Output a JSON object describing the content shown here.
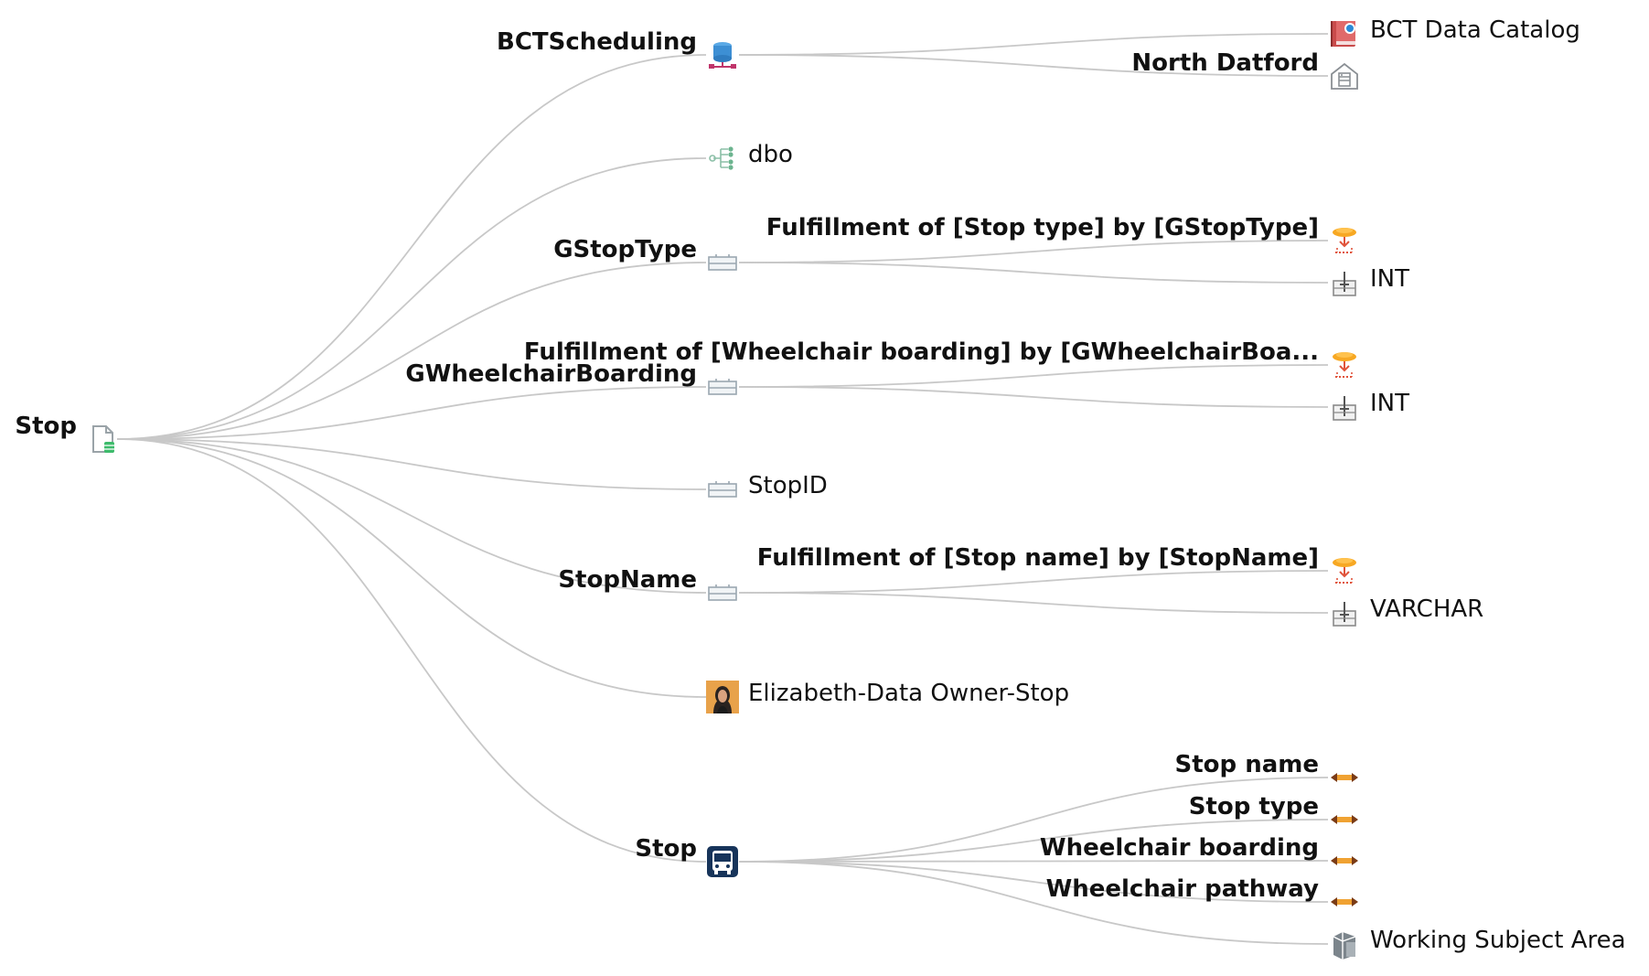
{
  "root": {
    "label": "Stop",
    "icon": "table-file-icon"
  },
  "nodes": [
    {
      "id": "bctscheduling",
      "label": "BCTScheduling",
      "icon": "database-icon",
      "side": "left",
      "children": [
        {
          "id": "bct-data-catalog",
          "label": "BCT Data Catalog",
          "icon": "catalog-book-icon",
          "side": "right"
        },
        {
          "id": "north-datford",
          "label": "North Datford",
          "icon": "server-house-icon",
          "side": "left"
        }
      ]
    },
    {
      "id": "dbo",
      "label": "dbo",
      "icon": "schema-hierarchy-icon",
      "side": "right",
      "children": []
    },
    {
      "id": "gstoptype",
      "label": "GStopType",
      "icon": "column-icon",
      "side": "left",
      "children": [
        {
          "id": "fulfillment-stop-type",
          "label": "Fulfillment of [Stop type] by [GStopType]",
          "icon": "fulfillment-icon",
          "side": "left"
        },
        {
          "id": "int-1",
          "label": "INT",
          "icon": "datatype-icon",
          "side": "right"
        }
      ]
    },
    {
      "id": "gwheelchairboarding",
      "label": "GWheelchairBoarding",
      "icon": "column-icon",
      "side": "left",
      "children": [
        {
          "id": "fulfillment-wheelchair",
          "label": "Fulfillment of [Wheelchair boarding] by [GWheelchairBoa...",
          "icon": "fulfillment-icon",
          "side": "left"
        },
        {
          "id": "int-2",
          "label": "INT",
          "icon": "datatype-icon",
          "side": "right"
        }
      ]
    },
    {
      "id": "stopid",
      "label": "StopID",
      "icon": "column-icon",
      "side": "right",
      "children": []
    },
    {
      "id": "stopname",
      "label": "StopName",
      "icon": "column-icon",
      "side": "left",
      "children": [
        {
          "id": "fulfillment-stop-name",
          "label": "Fulfillment of [Stop name] by [StopName]",
          "icon": "fulfillment-icon",
          "side": "left"
        },
        {
          "id": "varchar",
          "label": "VARCHAR",
          "icon": "datatype-icon",
          "side": "right"
        }
      ]
    },
    {
      "id": "elizabeth",
      "label": "Elizabeth-Data Owner-Stop",
      "icon": "person-avatar-icon",
      "side": "right",
      "children": []
    },
    {
      "id": "stop-asset",
      "label": "Stop",
      "icon": "bus-icon",
      "side": "left",
      "children": [
        {
          "id": "attr-stop-name",
          "label": "Stop name",
          "icon": "relation-arrow-icon",
          "side": "left"
        },
        {
          "id": "attr-stop-type",
          "label": "Stop type",
          "icon": "relation-arrow-icon",
          "side": "left"
        },
        {
          "id": "attr-wheelchair-boarding",
          "label": "Wheelchair boarding",
          "icon": "relation-arrow-icon",
          "side": "left"
        },
        {
          "id": "attr-wheelchair-pathway",
          "label": "Wheelchair pathway",
          "icon": "relation-arrow-icon",
          "side": "left"
        },
        {
          "id": "working-subject-area",
          "label": "Working Subject Area",
          "icon": "subject-area-icon",
          "side": "right"
        }
      ]
    }
  ]
}
